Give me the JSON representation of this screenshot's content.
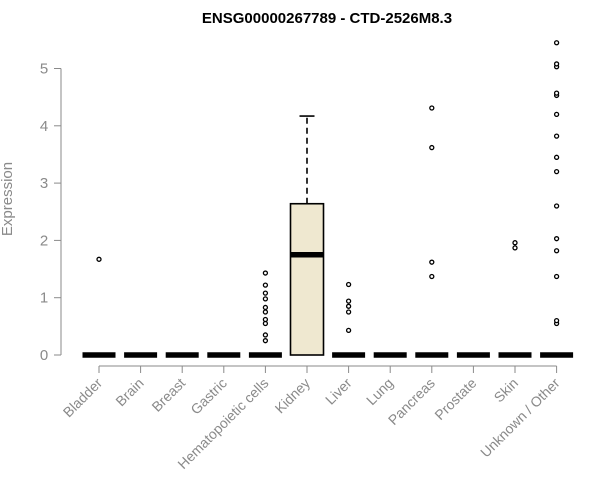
{
  "chart_data": {
    "type": "boxplot",
    "title": "ENSG00000267789 - CTD-2526M8.3",
    "ylabel": "Expression",
    "xlabel": "",
    "ylim": [
      0,
      5.45
    ],
    "yticks": [
      0,
      1,
      2,
      3,
      4,
      5
    ],
    "colors": {
      "box_fill": "#efe8d0",
      "stroke": "#000000",
      "axis": "#8a8a8a"
    },
    "categories": [
      "Bladder",
      "Brain",
      "Breast",
      "Gastric",
      "Hematopoietic cells",
      "Kidney",
      "Liver",
      "Lung",
      "Pancreas",
      "Prostate",
      "Skin",
      "Unknown / Other"
    ],
    "boxes": [
      {
        "category": "Bladder",
        "q1": 0,
        "median": 0,
        "q3": 0,
        "whisker_low": 0,
        "whisker_high": 0,
        "outliers": [
          1.67
        ]
      },
      {
        "category": "Brain",
        "q1": 0,
        "median": 0,
        "q3": 0,
        "whisker_low": 0,
        "whisker_high": 0,
        "outliers": []
      },
      {
        "category": "Breast",
        "q1": 0,
        "median": 0,
        "q3": 0,
        "whisker_low": 0,
        "whisker_high": 0,
        "outliers": []
      },
      {
        "category": "Gastric",
        "q1": 0,
        "median": 0,
        "q3": 0,
        "whisker_low": 0,
        "whisker_high": 0,
        "outliers": []
      },
      {
        "category": "Hematopoietic cells",
        "q1": 0,
        "median": 0,
        "q3": 0,
        "whisker_low": 0,
        "whisker_high": 0,
        "outliers": [
          0.25,
          0.35,
          0.55,
          0.62,
          0.75,
          0.83,
          0.98,
          1.08,
          1.22,
          1.43
        ]
      },
      {
        "category": "Kidney",
        "q1": 0,
        "median": 1.75,
        "q3": 2.64,
        "whisker_low": 0,
        "whisker_high": 4.17,
        "outliers": []
      },
      {
        "category": "Liver",
        "q1": 0,
        "median": 0,
        "q3": 0,
        "whisker_low": 0,
        "whisker_high": 0,
        "outliers": [
          0.43,
          0.75,
          0.85,
          0.94,
          1.23
        ]
      },
      {
        "category": "Lung",
        "q1": 0,
        "median": 0,
        "q3": 0,
        "whisker_low": 0,
        "whisker_high": 0,
        "outliers": []
      },
      {
        "category": "Pancreas",
        "q1": 0,
        "median": 0,
        "q3": 0,
        "whisker_low": 0,
        "whisker_high": 0,
        "outliers": [
          1.37,
          1.62,
          3.62,
          4.31
        ]
      },
      {
        "category": "Prostate",
        "q1": 0,
        "median": 0,
        "q3": 0,
        "whisker_low": 0,
        "whisker_high": 0,
        "outliers": []
      },
      {
        "category": "Skin",
        "q1": 0,
        "median": 0,
        "q3": 0,
        "whisker_low": 0,
        "whisker_high": 0,
        "outliers": [
          1.87,
          1.96
        ]
      },
      {
        "category": "Unknown / Other",
        "q1": 0,
        "median": 0,
        "q3": 0,
        "whisker_low": 0,
        "whisker_high": 0,
        "outliers": [
          0.55,
          0.6,
          1.37,
          1.82,
          2.03,
          2.6,
          3.2,
          3.45,
          3.82,
          4.2,
          4.53,
          4.57,
          5.03,
          5.08,
          5.45
        ]
      }
    ]
  }
}
